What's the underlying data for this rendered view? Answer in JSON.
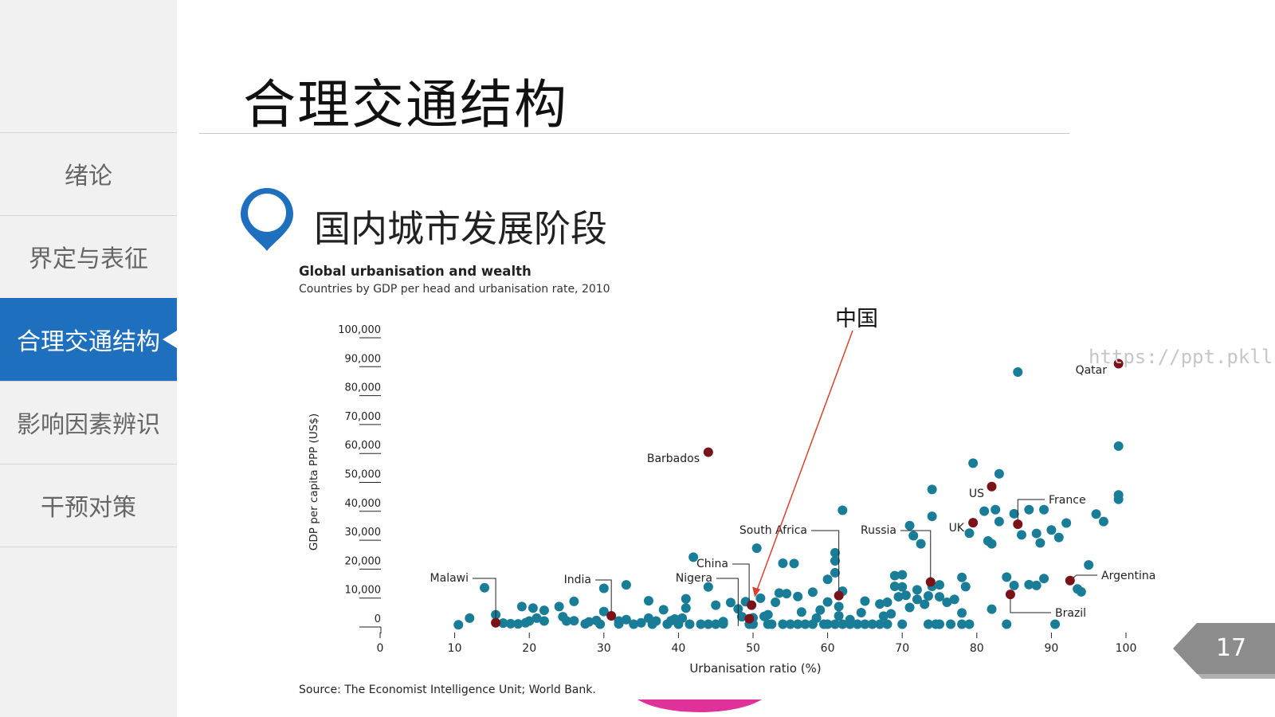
{
  "sidebar": {
    "items": [
      {
        "label": "绪论",
        "active": false
      },
      {
        "label": "界定与表征",
        "active": false
      },
      {
        "label": "合理交通结构",
        "active": true
      },
      {
        "label": "影响因素辨识",
        "active": false
      },
      {
        "label": "干预对策",
        "active": false
      }
    ]
  },
  "page": {
    "title": "合理交通结构",
    "section_title": "国内城市发展阶段",
    "page_number": "17",
    "watermark": "https://ppt.pkll.de"
  },
  "annotation": {
    "label": "中国",
    "color": "#d9412c"
  },
  "colors": {
    "accent": "#1f6fbf",
    "point": "#1a7d98",
    "highlight": "#7a1219",
    "pink": "#e0309a",
    "badge": "#8c8c8c"
  },
  "chart_data": {
    "type": "scatter",
    "title": "Global urbanisation and wealth",
    "subtitle": "Countries by GDP per head and urbanisation rate, 2010",
    "xlabel": "Urbanisation ratio (%)",
    "ylabel": "GDP per capita PPP (US$)",
    "xlim": [
      0,
      100
    ],
    "ylim": [
      0,
      100000
    ],
    "xticks": [
      "0",
      "10",
      "20",
      "30",
      "40",
      "50",
      "60",
      "70",
      "80",
      "90",
      "100"
    ],
    "yticks": [
      "0",
      "10,000",
      "20,000",
      "30,000",
      "40,000",
      "50,000",
      "60,000",
      "70,000",
      "80,000",
      "90,000",
      "100,000"
    ],
    "source": "Source: The Economist Intelligence Unit; World Bank.",
    "highlighted": [
      {
        "name": "Malawi",
        "x": 15.5,
        "y": 900
      },
      {
        "name": "India",
        "x": 31,
        "y": 3300
      },
      {
        "name": "Nigera",
        "x": 49.5,
        "y": 2300
      },
      {
        "name": "China",
        "x": 49.8,
        "y": 7000
      },
      {
        "name": "South Africa",
        "x": 61.5,
        "y": 10300
      },
      {
        "name": "Russia",
        "x": 73.8,
        "y": 15000
      },
      {
        "name": "Barbados",
        "x": 44,
        "y": 59900
      },
      {
        "name": "UK",
        "x": 79.5,
        "y": 35500
      },
      {
        "name": "US",
        "x": 82,
        "y": 48000
      },
      {
        "name": "France",
        "x": 85.5,
        "y": 35000
      },
      {
        "name": "Argentina",
        "x": 92.5,
        "y": 15500
      },
      {
        "name": "Brazil",
        "x": 84.5,
        "y": 10700
      },
      {
        "name": "Qatar",
        "x": 99,
        "y": 90500
      }
    ],
    "points": [
      [
        10.5,
        200
      ],
      [
        12,
        2500
      ],
      [
        14,
        13000
      ],
      [
        15.5,
        3700
      ],
      [
        16.5,
        800
      ],
      [
        17.5,
        600
      ],
      [
        18.5,
        500
      ],
      [
        19.5,
        900
      ],
      [
        20,
        1500
      ],
      [
        19,
        6500
      ],
      [
        20.5,
        6000
      ],
      [
        21,
        2500
      ],
      [
        22,
        1500
      ],
      [
        22,
        5200
      ],
      [
        24,
        6500
      ],
      [
        24.5,
        3000
      ],
      [
        25,
        1500
      ],
      [
        26,
        1600
      ],
      [
        26,
        8300
      ],
      [
        27.5,
        500
      ],
      [
        28,
        1200
      ],
      [
        29,
        1700
      ],
      [
        29.5,
        400
      ],
      [
        30,
        4800
      ],
      [
        30,
        12800
      ],
      [
        32,
        1500
      ],
      [
        32,
        500
      ],
      [
        33,
        14000
      ],
      [
        33,
        2000
      ],
      [
        34,
        400
      ],
      [
        35,
        900
      ],
      [
        36,
        2500
      ],
      [
        36,
        8500
      ],
      [
        36.5,
        400
      ],
      [
        37,
        1500
      ],
      [
        38,
        5400
      ],
      [
        38.5,
        400
      ],
      [
        39,
        1600
      ],
      [
        39.5,
        2200
      ],
      [
        40,
        400
      ],
      [
        40.5,
        2500
      ],
      [
        41,
        6000
      ],
      [
        41,
        9200
      ],
      [
        41.5,
        400
      ],
      [
        42,
        23600
      ],
      [
        43,
        400
      ],
      [
        44,
        13300
      ],
      [
        44,
        400
      ],
      [
        45,
        400
      ],
      [
        45,
        7000
      ],
      [
        46,
        500
      ],
      [
        46,
        1300
      ],
      [
        47,
        7900
      ],
      [
        48,
        5700
      ],
      [
        48.5,
        3000
      ],
      [
        49,
        8200
      ],
      [
        49.5,
        400
      ],
      [
        50,
        400
      ],
      [
        50,
        2600
      ],
      [
        50.5,
        26700
      ],
      [
        51,
        9400
      ],
      [
        51.5,
        3100
      ],
      [
        52,
        400
      ],
      [
        52,
        3700
      ],
      [
        52.5,
        400
      ],
      [
        53,
        8000
      ],
      [
        53.5,
        11200
      ],
      [
        54,
        21500
      ],
      [
        54,
        400
      ],
      [
        54.5,
        11000
      ],
      [
        55,
        400
      ],
      [
        55.5,
        21400
      ],
      [
        56,
        400
      ],
      [
        56,
        10000
      ],
      [
        56.5,
        4600
      ],
      [
        57,
        400
      ],
      [
        58,
        400
      ],
      [
        58,
        11500
      ],
      [
        58.5,
        2500
      ],
      [
        59,
        5300
      ],
      [
        59.5,
        400
      ],
      [
        60,
        400
      ],
      [
        60,
        15900
      ],
      [
        60,
        8100
      ],
      [
        61,
        400
      ],
      [
        61,
        22300
      ],
      [
        61,
        18200
      ],
      [
        61,
        25100
      ],
      [
        61.5,
        3300
      ],
      [
        61.5,
        6500
      ],
      [
        62,
        400
      ],
      [
        62,
        11800
      ],
      [
        62,
        39800
      ],
      [
        63,
        400
      ],
      [
        63,
        2000
      ],
      [
        64,
        400
      ],
      [
        64.5,
        4400
      ],
      [
        65,
        400
      ],
      [
        65,
        8400
      ],
      [
        66,
        400
      ],
      [
        67,
        400
      ],
      [
        67,
        7400
      ],
      [
        67.5,
        3200
      ],
      [
        68,
        400
      ],
      [
        68,
        8000
      ],
      [
        68.5,
        4000
      ],
      [
        69,
        17200
      ],
      [
        69,
        13500
      ],
      [
        69.5,
        9900
      ],
      [
        70,
        13300
      ],
      [
        70,
        400
      ],
      [
        70,
        17500
      ],
      [
        70.5,
        10400
      ],
      [
        71,
        34500
      ],
      [
        71,
        6200
      ],
      [
        71.5,
        31000
      ],
      [
        72,
        12300
      ],
      [
        72,
        9000
      ],
      [
        72.5,
        28200
      ],
      [
        73,
        7300
      ],
      [
        73.5,
        10200
      ],
      [
        73.5,
        400
      ],
      [
        74,
        47000
      ],
      [
        74,
        13500
      ],
      [
        74,
        37700
      ],
      [
        74.5,
        400
      ],
      [
        75,
        9900
      ],
      [
        75,
        14000
      ],
      [
        75,
        400
      ],
      [
        76,
        8000
      ],
      [
        76.5,
        400
      ],
      [
        77,
        9000
      ],
      [
        78,
        4300
      ],
      [
        78,
        400
      ],
      [
        78,
        16600
      ],
      [
        78.5,
        13400
      ],
      [
        79,
        400
      ],
      [
        79,
        31900
      ],
      [
        79.5,
        56100
      ],
      [
        81,
        39500
      ],
      [
        81.5,
        29200
      ],
      [
        82,
        5600
      ],
      [
        82,
        28200
      ],
      [
        82.5,
        40000
      ],
      [
        83,
        35900
      ],
      [
        83,
        52400
      ],
      [
        84,
        16700
      ],
      [
        84,
        400
      ],
      [
        85,
        13800
      ],
      [
        85,
        38600
      ],
      [
        85.5,
        87600
      ],
      [
        86,
        31300
      ],
      [
        87,
        40000
      ],
      [
        87,
        14100
      ],
      [
        88,
        13800
      ],
      [
        88,
        31800
      ],
      [
        88.5,
        28500
      ],
      [
        89,
        40000
      ],
      [
        89,
        16200
      ],
      [
        90,
        33000
      ],
      [
        90.5,
        400
      ],
      [
        91,
        30400
      ],
      [
        92,
        35400
      ],
      [
        93.5,
        12600
      ],
      [
        94,
        11600
      ],
      [
        95,
        20900
      ],
      [
        96,
        38500
      ],
      [
        97,
        35900
      ],
      [
        99,
        62000
      ],
      [
        99,
        45100
      ],
      [
        99,
        43600
      ]
    ]
  }
}
